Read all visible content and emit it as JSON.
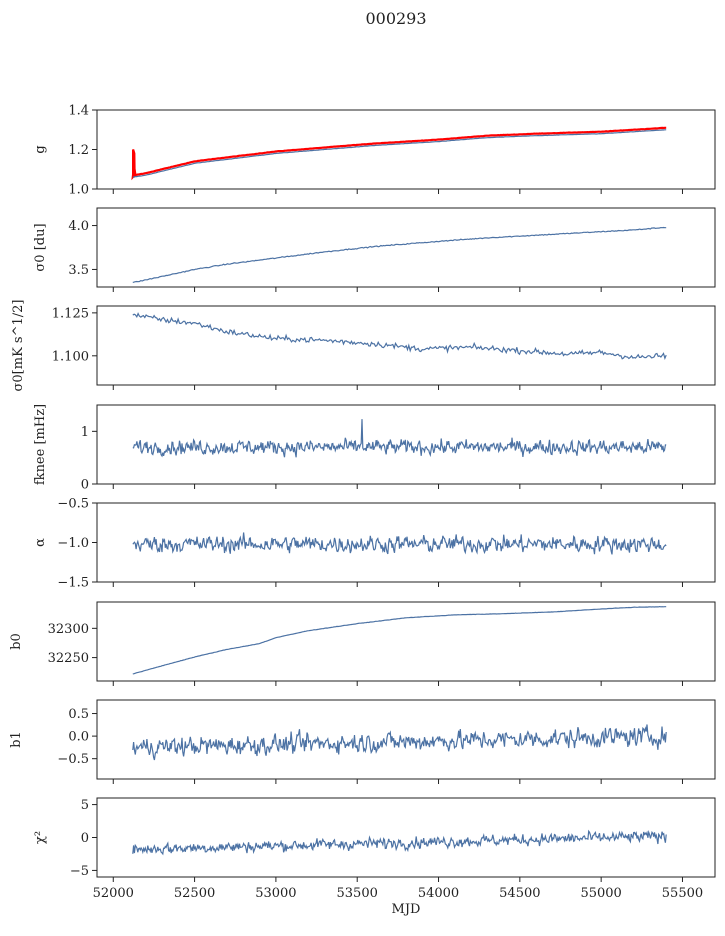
{
  "figure": {
    "title": "000293"
  },
  "colors": {
    "series": "#4c72a4",
    "reference": "#ff0000",
    "axes": "#222222"
  },
  "chart_data": [
    {
      "id": "g",
      "type": "line",
      "ylabel": "g",
      "xlabel": "",
      "xlim": [
        51900,
        55700
      ],
      "ylim": [
        1.0,
        1.4
      ],
      "yticks": [
        1.0,
        1.2,
        1.4
      ],
      "ytick_labels": [
        "1.0",
        "1.2",
        "1.4"
      ],
      "series": [
        {
          "name": "g (red)",
          "color": "#ff0000",
          "x": [
            52120,
            52125,
            52130,
            52200,
            52300,
            52500,
            52700,
            53000,
            53300,
            53600,
            54000,
            54300,
            54600,
            55000,
            55200,
            55400
          ],
          "y": [
            1.06,
            1.2,
            1.07,
            1.08,
            1.1,
            1.14,
            1.16,
            1.19,
            1.21,
            1.23,
            1.25,
            1.27,
            1.28,
            1.29,
            1.3,
            1.31
          ]
        },
        {
          "name": "g (blue)",
          "color": "#4c72a4",
          "x": [
            52120,
            52200,
            52300,
            52500,
            52700,
            53000,
            53300,
            53600,
            54000,
            54300,
            54600,
            55000,
            55200,
            55400
          ],
          "y": [
            1.06,
            1.07,
            1.09,
            1.13,
            1.15,
            1.18,
            1.2,
            1.22,
            1.24,
            1.26,
            1.27,
            1.28,
            1.29,
            1.3
          ]
        }
      ]
    },
    {
      "id": "sigma0_du",
      "type": "line",
      "ylabel": "σ0 [du]",
      "xlim": [
        51900,
        55700
      ],
      "ylim": [
        3.3,
        4.2
      ],
      "yticks": [
        3.5,
        4.0
      ],
      "ytick_labels": [
        "3.5",
        "4.0"
      ],
      "series": [
        {
          "name": "σ0",
          "color": "#4c72a4",
          "x": [
            52120,
            52300,
            52500,
            52700,
            53000,
            53300,
            53600,
            54000,
            54300,
            54600,
            55000,
            55200,
            55400
          ],
          "y": [
            3.35,
            3.42,
            3.5,
            3.56,
            3.63,
            3.7,
            3.76,
            3.82,
            3.86,
            3.89,
            3.93,
            3.95,
            3.98
          ]
        }
      ]
    },
    {
      "id": "sigma0_mks",
      "type": "line",
      "ylabel": "σ0[mK s^1/2]",
      "xlim": [
        51900,
        55700
      ],
      "ylim": [
        1.083,
        1.129
      ],
      "yticks": [
        1.1,
        1.125
      ],
      "ytick_labels": [
        "1.100",
        "1.125"
      ],
      "series": [
        {
          "name": "σ0 mK",
          "color": "#4c72a4",
          "x": [
            52120,
            52300,
            52500,
            52700,
            53000,
            53300,
            53600,
            53900,
            54200,
            54500,
            54800,
            55000,
            55200,
            55400
          ],
          "y": [
            1.124,
            1.121,
            1.119,
            1.114,
            1.11,
            1.109,
            1.107,
            1.104,
            1.105,
            1.103,
            1.101,
            1.102,
            1.099,
            1.1
          ]
        }
      ]
    },
    {
      "id": "fknee",
      "type": "line",
      "ylabel": "fknee [mHz]",
      "xlim": [
        51900,
        55700
      ],
      "ylim": [
        0,
        1.5
      ],
      "yticks": [
        0,
        1
      ],
      "ytick_labels": [
        "0",
        "1"
      ],
      "series": [
        {
          "name": "fknee",
          "color": "#4c72a4",
          "noise": true,
          "x": [
            52120,
            55400
          ],
          "y": [
            0.7,
            0.7
          ],
          "noise_amplitude": 0.13,
          "spike_x": 53530,
          "spike_y": 1.23
        }
      ]
    },
    {
      "id": "alpha",
      "type": "line",
      "ylabel": "α",
      "xlim": [
        51900,
        55700
      ],
      "ylim": [
        -1.5,
        -0.5
      ],
      "yticks": [
        -1.5,
        -1.0,
        -0.5
      ],
      "ytick_labels": [
        "−1.5",
        "−1.0",
        "−0.5"
      ],
      "series": [
        {
          "name": "alpha",
          "color": "#4c72a4",
          "noise": true,
          "x": [
            52120,
            55400
          ],
          "y": [
            -1.02,
            -1.02
          ],
          "noise_amplitude": 0.1
        }
      ]
    },
    {
      "id": "b0",
      "type": "line",
      "ylabel": "b0",
      "xlim": [
        51900,
        55700
      ],
      "ylim": [
        32210,
        32345
      ],
      "yticks": [
        32250,
        32300
      ],
      "ytick_labels": [
        "32250",
        "32300"
      ],
      "series": [
        {
          "name": "b0",
          "color": "#4c72a4",
          "x": [
            52120,
            52300,
            52500,
            52700,
            52900,
            53000,
            53200,
            53500,
            53800,
            54100,
            54400,
            54700,
            55000,
            55200,
            55400
          ],
          "y": [
            32222,
            32236,
            32251,
            32264,
            32274,
            32284,
            32296,
            32308,
            32318,
            32323,
            32325,
            32328,
            32333,
            32336,
            32337
          ]
        }
      ]
    },
    {
      "id": "b1",
      "type": "line",
      "ylabel": "b1",
      "xlim": [
        51900,
        55700
      ],
      "ylim": [
        -0.95,
        0.8
      ],
      "yticks": [
        -0.5,
        0.0,
        0.5
      ],
      "ytick_labels": [
        "−0.5",
        "0.0",
        "0.5"
      ],
      "series": [
        {
          "name": "b1",
          "color": "#4c72a4",
          "noise": true,
          "x": [
            52120,
            55400
          ],
          "y": [
            -0.25,
            0.0
          ],
          "noise_amplitude": 0.2
        }
      ]
    },
    {
      "id": "chi2",
      "type": "line",
      "ylabel": "χ²",
      "xlabel": "MJD",
      "xlim": [
        51900,
        55700
      ],
      "ylim": [
        -6,
        6
      ],
      "yticks": [
        -5,
        0,
        5
      ],
      "ytick_labels": [
        "−5",
        "0",
        "5"
      ],
      "xticks": [
        52000,
        52500,
        53000,
        53500,
        54000,
        54500,
        55000,
        55500
      ],
      "xtick_labels": [
        "52000",
        "52500",
        "53000",
        "53500",
        "54000",
        "54500",
        "55000",
        "55500"
      ],
      "series": [
        {
          "name": "chi2",
          "color": "#4c72a4",
          "noise": true,
          "x": [
            52120,
            55400
          ],
          "y": [
            -1.8,
            0.2
          ],
          "noise_amplitude": 0.8
        }
      ]
    }
  ]
}
